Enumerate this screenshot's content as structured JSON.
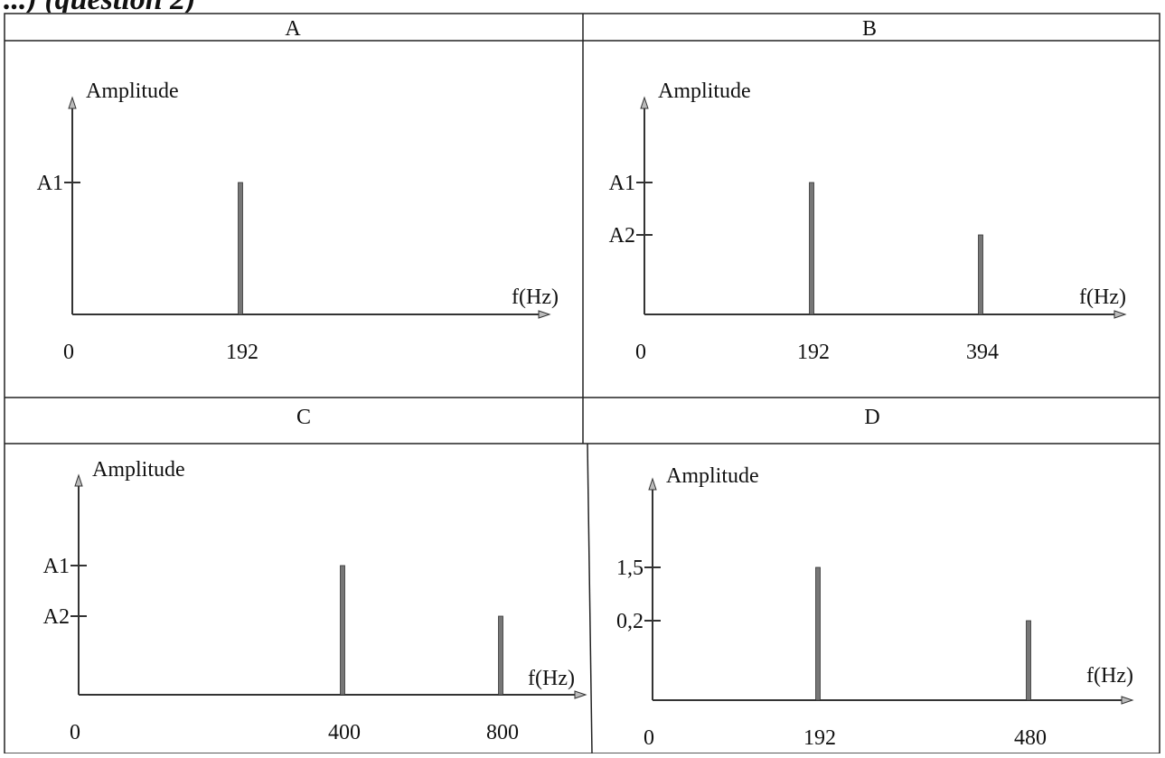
{
  "header_fragment": "...) (question 2)",
  "chart_data": [
    {
      "type": "bar",
      "panel": "A",
      "ylabel": "Amplitude",
      "xlabel": "f(Hz)",
      "origin_label": "0",
      "y_tick_labels": [
        "A1"
      ],
      "bars": [
        {
          "x": "192",
          "level": "A1"
        }
      ]
    },
    {
      "type": "bar",
      "panel": "B",
      "ylabel": "Amplitude",
      "xlabel": "f(Hz)",
      "origin_label": "0",
      "y_tick_labels": [
        "A1",
        "A2"
      ],
      "bars": [
        {
          "x": "192",
          "level": "A1"
        },
        {
          "x": "394",
          "level": "A2"
        }
      ]
    },
    {
      "type": "bar",
      "panel": "C",
      "ylabel": "Amplitude",
      "xlabel": "f(Hz)",
      "origin_label": "0",
      "y_tick_labels": [
        "A1",
        "A2"
      ],
      "bars": [
        {
          "x": "400",
          "level": "A1"
        },
        {
          "x": "800",
          "level": "A2"
        }
      ]
    },
    {
      "type": "bar",
      "panel": "D",
      "ylabel": "Amplitude",
      "xlabel": "f(Hz)",
      "origin_label": "0",
      "y_tick_labels": [
        "1,5",
        "0,2"
      ],
      "bars": [
        {
          "x": "192",
          "level": "1,5"
        },
        {
          "x": "480",
          "level": "0,2"
        }
      ]
    }
  ]
}
